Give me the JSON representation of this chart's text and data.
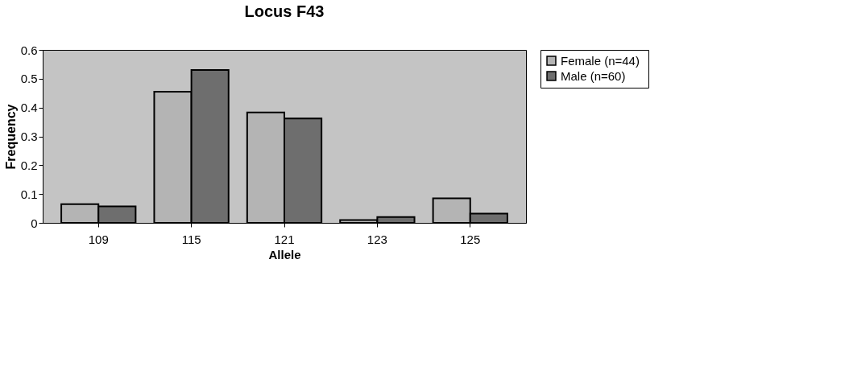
{
  "chart_data": {
    "type": "bar",
    "title": "Locus  F43",
    "xlabel": "Allele",
    "ylabel": "Frequency",
    "categories": [
      "109",
      "115",
      "121",
      "123",
      "125"
    ],
    "series": [
      {
        "name": "Female  (n=44)",
        "color": "#b4b4b4",
        "values": [
          0.065,
          0.455,
          0.383,
          0.01,
          0.085
        ]
      },
      {
        "name": "Male  (n=60)",
        "color": "#6e6e6e",
        "values": [
          0.057,
          0.53,
          0.362,
          0.02,
          0.032
        ]
      }
    ],
    "ylim": [
      0,
      0.6
    ],
    "yticks": [
      0,
      0.1,
      0.2,
      0.3,
      0.4,
      0.5,
      0.6
    ],
    "grid": false,
    "legend": "right"
  }
}
